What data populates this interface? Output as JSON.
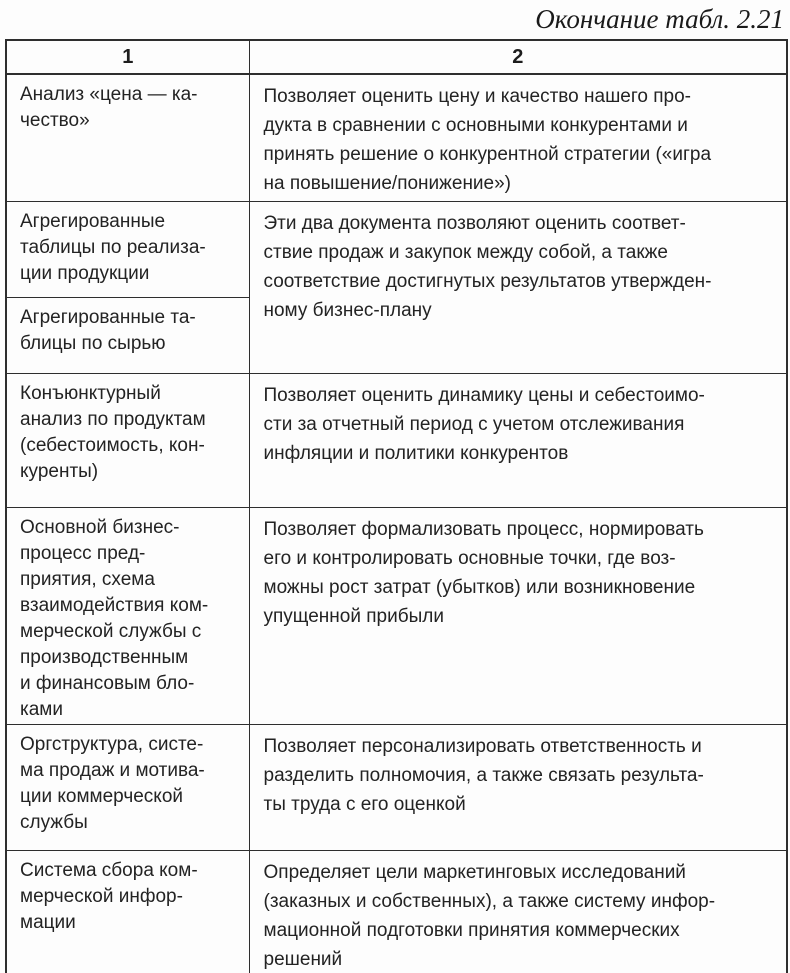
{
  "page": {
    "caption": "Окончание табл. 2.21"
  },
  "table": {
    "headers": [
      "1",
      "2"
    ],
    "rows": [
      {
        "tool": "Анализ «цена — ка-\nчество»",
        "description": "Позволяет оценить цену и качество нашего про-\nдукта в сравнении с основными конкурентами и\nпринять решение о конкурентной стратегии («игра\nна повышение/понижение»)"
      },
      {
        "tool_top": "Агрегированные\nтаблицы по реализа-\nции продукции",
        "tool_bottom": "Агрегированные та-\nблицы по сырью",
        "description": "Эти два документа позволяют оценить соответ-\nствие продаж и закупок между собой, а также\nсоответствие достигнутых результатов утвержден-\nному бизнес-плану"
      },
      {
        "tool": "Конъюнктурный\nанализ по продуктам\n(себестоимость, кон-\nкуренты)",
        "description": "Позволяет оценить динамику цены и себестоимо-\nсти за отчетный период с учетом отслеживания\nинфляции и политики конкурентов"
      },
      {
        "tool": "Основной бизнес-\nпроцесс пред-\nприятия, схема\nвзаимодействия ком-\nмерческой службы с\nпроизводственным\nи финансовым бло-\nками",
        "description": "Позволяет формализовать процесс, нормировать\nего и контролировать основные точки, где воз-\nможны рост затрат (убытков) или возникновение\nупущенной прибыли"
      },
      {
        "tool": "Оргструктура, систе-\nма продаж и мотива-\nции коммерческой\nслужбы",
        "description": "Позволяет персонализировать ответственность и\nразделить полномочия, а также связать результа-\nты труда с его оценкой"
      },
      {
        "tool": "Система сбора ком-\nмерческой инфор-\nмации",
        "description": "Определяет цели маркетинговых исследований\n(заказных и собственных), а также систему инфор-\nмационной подготовки принятия коммерческих\nрешений"
      }
    ]
  }
}
